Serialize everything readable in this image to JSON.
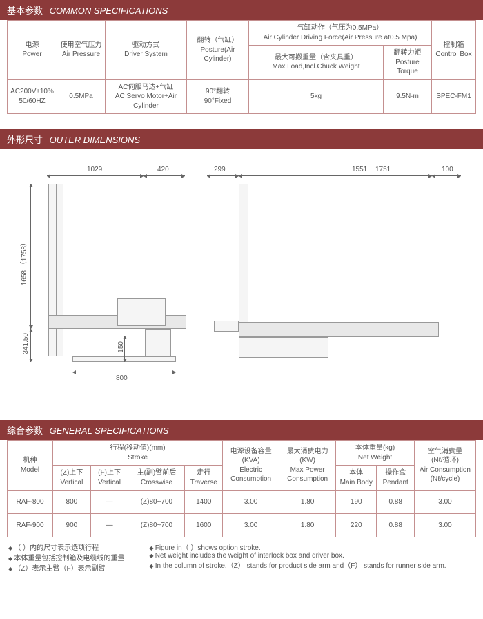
{
  "s1": {
    "title_cn": "基本参数",
    "title_en": "COMMON SPECIFICATIONS",
    "h": {
      "power_cn": "电源",
      "power_en": "Power",
      "air_cn": "使用空气压力",
      "air_en": "Air Pressure",
      "drv_cn": "驱动方式",
      "drv_en": "Driver System",
      "post_cn": "翻转（气缸）",
      "post_en": "Posture(Air Cylinder)",
      "cyl_cn": "气缸动作（气压为0.5MPa）",
      "cyl_en": "Air Cylinder Driving Force(Air Pressure at0.5 Mpa)",
      "load_cn": "最大可搬重量（含夹具重）",
      "load_en": "Max Load,Incl.Chuck Weight",
      "torq_cn": "翻转力矩",
      "torq_en": "Posture Torque",
      "box_cn": "控制箱",
      "box_en": "Control Box"
    },
    "r": {
      "power": "AC200V±10%\n50/60HZ",
      "air": "0.5MPa",
      "drv_cn": "AC伺服马达+气缸",
      "drv_en": "AC Servo Motor+Air Cylinder",
      "post_cn": "90°翻转",
      "post_en": "90°Fixed",
      "load": "5kg",
      "torq": "9.5N·m",
      "box": "SPEC-FM1"
    }
  },
  "s2": {
    "title_cn": "外形尺寸",
    "title_en": "OUTER DIMENSIONS",
    "d": {
      "w1": "1029",
      "w2": "420",
      "w3": "299",
      "w4": "1551",
      "w4b": "1751",
      "w5": "100",
      "h1": "1658",
      "h1b": "（1758）",
      "h2": "341.50",
      "h3": "150",
      "w6": "800"
    }
  },
  "s3": {
    "title_cn": "综合参数",
    "title_en": "GENERAL SPECIFICATIONS",
    "h": {
      "model_cn": "机种",
      "model_en": "Model",
      "stroke_cn": "行程(移动值)(mm)",
      "stroke_en": "Stroke",
      "zv_cn": "(Z)上下",
      "zv_en": "Vertical",
      "fv_cn": "(F)上下",
      "fv_en": "Vertical",
      "cw_cn": "主(副)臂前后",
      "cw_en": "Crosswise",
      "tr_cn": "走行",
      "tr_en": "Traverse",
      "kva_cn": "电源设备容量",
      "kva_u": "(KVA)",
      "kva_en": "Electric\nConsumption",
      "kw_cn": "最大消费电力",
      "kw_u": "(KW)",
      "kw_en": "Max Power\nConsumption",
      "nw_cn": "本体重量(kg)",
      "nw_en": "Net Weight",
      "mb_cn": "本体",
      "mb_en": "Main Body",
      "pd_cn": "操作盒",
      "pd_en": "Pendant",
      "ac_cn": "空气消费量",
      "ac_u": "(Nℓ/循环)",
      "ac_en": "Air Consumption\n(Nℓ/cycle)"
    },
    "rows": [
      {
        "model": "RAF-800",
        "zv": "800",
        "fv": "—",
        "cw": "(Z)80~700",
        "tr": "1400",
        "kva": "3.00",
        "kw": "1.80",
        "mb": "190",
        "pd": "0.88",
        "ac": "3.00"
      },
      {
        "model": "RAF-900",
        "zv": "900",
        "fv": "—",
        "cw": "(Z)80~700",
        "tr": "1600",
        "kva": "3.00",
        "kw": "1.80",
        "mb": "220",
        "pd": "0.88",
        "ac": "3.00"
      }
    ]
  },
  "notes": {
    "l1": "（ ）内的尺寸表示选项行程",
    "l2": "本体重量包括控制箱及电缆线的重量",
    "l3": "（Z）表示主臂（F）表示副臂",
    "r1": "Figure in（ ）shows option stroke.",
    "r2": "Net weight includes the weight of interlock box and driver box.",
    "r3": "In the column of stroke,（Z） stands for product side arm and（F） stands for runner side arm."
  }
}
